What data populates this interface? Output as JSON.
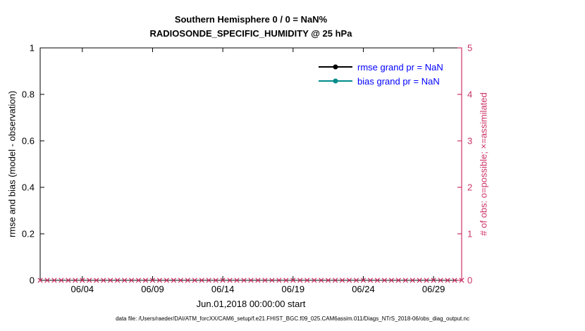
{
  "chart_data": {
    "type": "line",
    "title_line1": "Southern Hemisphere 0 / 0 = NaN%",
    "title_line2": "RADIOSONDE_SPECIFIC_HUMIDITY @ 25 hPa",
    "xlabel": "Jun.01,2018 00:00:00 start",
    "ylabel_left": "rmse and bias (model - observation)",
    "ylabel_right": "# of obs: o=possible; ×=assimilated",
    "x_range_days": [
      0,
      30
    ],
    "x_ticks": [
      {
        "day": 3,
        "label": "06/04"
      },
      {
        "day": 8,
        "label": "06/09"
      },
      {
        "day": 13,
        "label": "06/14"
      },
      {
        "day": 18,
        "label": "06/19"
      },
      {
        "day": 23,
        "label": "06/24"
      },
      {
        "day": 28,
        "label": "06/29"
      }
    ],
    "left_axis": {
      "min": 0,
      "max": 1,
      "ticks": [
        "0",
        "0.2",
        "0.4",
        "0.6",
        "0.8",
        "1"
      ],
      "color": "#000000"
    },
    "right_axis": {
      "min": 0,
      "max": 5,
      "ticks": [
        "0",
        "1",
        "2",
        "3",
        "4",
        "5"
      ],
      "color": "#cc3366"
    },
    "series": [
      {
        "name": "rmse grand pr = NaN",
        "color": "#000000",
        "values": []
      },
      {
        "name": "bias grand pr = NaN",
        "color": "#008b8b",
        "values": []
      }
    ],
    "obs_markers": {
      "symbol": "x",
      "value": 0,
      "start_day": 0,
      "end_day": 30,
      "step_days": 0.5,
      "color": "#cc3366"
    },
    "legend": {
      "text_color": "#0000ff"
    },
    "caption": "data file: /Users/raeder/DAI/ATM_forcXX/CAM6_setup/f.e21.FHIST_BGC.f09_025.CAM6assim.011/Diags_NTrS_2018-06/obs_diag_output.nc"
  }
}
